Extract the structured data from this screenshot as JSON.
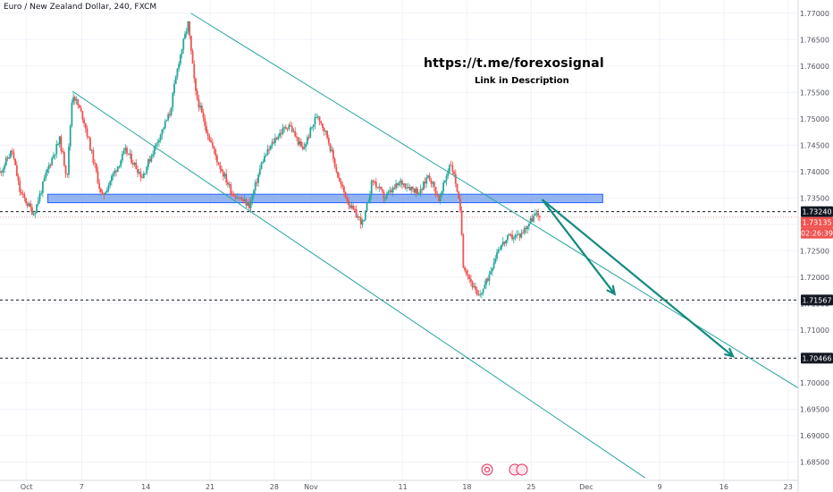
{
  "symbol_title": "Euro / New Zealand Dollar, 240, FXCM",
  "annotations": {
    "main": "https://t.me/forexosignal",
    "sub": "Link in Description"
  },
  "colors": {
    "up": "#26a69a",
    "down": "#ef5350",
    "channel": "#26a69a",
    "zone_fill": "#5b8de6",
    "zone_stroke": "#2962ff",
    "arrow": "#138a7e",
    "current_price_bg": "#ef5350",
    "tag_dark": "#131722"
  },
  "price_tags": {
    "last_price": "1.73135",
    "countdown": "02:26:39",
    "level_1": "1.73240",
    "level_2": "1.71567",
    "level_3": "1.70466"
  },
  "bottom_icons": [
    "calendar-icon",
    "events-icon"
  ],
  "chart_data": {
    "type": "candlestick",
    "title": "Euro / New Zealand Dollar, 240, FXCM",
    "x_ticks": [
      "Oct",
      "7",
      "14",
      "21",
      "28",
      "Nov",
      "11",
      "18",
      "25",
      "Dec",
      "9",
      "16",
      "23"
    ],
    "y_ticks": [
      "1.77000",
      "1.76500",
      "1.76000",
      "1.75500",
      "1.75000",
      "1.74500",
      "1.74000",
      "1.73500",
      "1.73000",
      "1.72500",
      "1.72000",
      "1.71500",
      "1.71000",
      "1.70500",
      "1.70000",
      "1.69500",
      "1.69000",
      "1.68500"
    ],
    "ylim": [
      1.6815,
      1.7725
    ],
    "x_range_days": [
      -2.9,
      84.1
    ],
    "grid": true,
    "ohlc_anchors": [
      {
        "d": -3.0,
        "c": 1.7395
      },
      {
        "d": -1.6,
        "c": 1.744
      },
      {
        "d": -0.7,
        "c": 1.736
      },
      {
        "d": 0.8,
        "c": 1.732
      },
      {
        "d": 2.4,
        "c": 1.741
      },
      {
        "d": 3.6,
        "c": 1.746
      },
      {
        "d": 4.4,
        "c": 1.739
      },
      {
        "d": 5.0,
        "c": 1.755
      },
      {
        "d": 6.2,
        "c": 1.75
      },
      {
        "d": 7.5,
        "c": 1.7405
      },
      {
        "d": 8.2,
        "c": 1.735
      },
      {
        "d": 9.6,
        "c": 1.74
      },
      {
        "d": 10.8,
        "c": 1.744
      },
      {
        "d": 12.6,
        "c": 1.739
      },
      {
        "d": 14.3,
        "c": 1.746
      },
      {
        "d": 15.6,
        "c": 1.751
      },
      {
        "d": 16.6,
        "c": 1.761
      },
      {
        "d": 17.6,
        "c": 1.768
      },
      {
        "d": 18.4,
        "c": 1.755
      },
      {
        "d": 19.4,
        "c": 1.749
      },
      {
        "d": 20.8,
        "c": 1.742
      },
      {
        "d": 22.4,
        "c": 1.736
      },
      {
        "d": 24.3,
        "c": 1.7335
      },
      {
        "d": 25.7,
        "c": 1.742
      },
      {
        "d": 27.2,
        "c": 1.7465
      },
      {
        "d": 28.6,
        "c": 1.749
      },
      {
        "d": 30.1,
        "c": 1.744
      },
      {
        "d": 31.7,
        "c": 1.751
      },
      {
        "d": 32.8,
        "c": 1.7465
      },
      {
        "d": 34.1,
        "c": 1.738
      },
      {
        "d": 35.4,
        "c": 1.733
      },
      {
        "d": 36.7,
        "c": 1.73
      },
      {
        "d": 37.7,
        "c": 1.7385
      },
      {
        "d": 39.0,
        "c": 1.735
      },
      {
        "d": 40.8,
        "c": 1.738
      },
      {
        "d": 42.9,
        "c": 1.736
      },
      {
        "d": 43.8,
        "c": 1.7395
      },
      {
        "d": 45.0,
        "c": 1.7345
      },
      {
        "d": 46.2,
        "c": 1.742
      },
      {
        "d": 46.9,
        "c": 1.737
      },
      {
        "d": 47.35,
        "c": 1.731
      },
      {
        "d": 47.6,
        "c": 1.7225
      },
      {
        "d": 48.6,
        "c": 1.7185
      },
      {
        "d": 49.2,
        "c": 1.716
      },
      {
        "d": 50.1,
        "c": 1.719
      },
      {
        "d": 51.4,
        "c": 1.7255
      },
      {
        "d": 52.6,
        "c": 1.7275
      },
      {
        "d": 53.8,
        "c": 1.728
      },
      {
        "d": 55.4,
        "c": 1.7318
      },
      {
        "d": 56.0,
        "c": 1.73135
      }
    ],
    "support_zone": {
      "from_day": 2.3,
      "to_day": 62.8,
      "low": 1.7341,
      "high": 1.7357
    },
    "horizontal_levels": [
      1.7324,
      1.71567,
      1.70466
    ],
    "current_price_line": 1.73135,
    "channel_lines": [
      {
        "from": {
          "d": 17.9,
          "p": 1.77
        },
        "to": {
          "d": 84.1,
          "p": 1.699
        }
      },
      {
        "from": {
          "d": 5.0,
          "p": 1.7552
        },
        "to": {
          "d": 67.4,
          "p": 1.682
        }
      }
    ],
    "projection_arrows": [
      {
        "from": {
          "d": 56.2,
          "p": 1.7347
        },
        "to": {
          "d": 64.1,
          "p": 1.7168
        }
      },
      {
        "from": {
          "d": 56.2,
          "p": 1.7347
        },
        "to": {
          "d": 77.0,
          "p": 1.705
        }
      }
    ]
  }
}
